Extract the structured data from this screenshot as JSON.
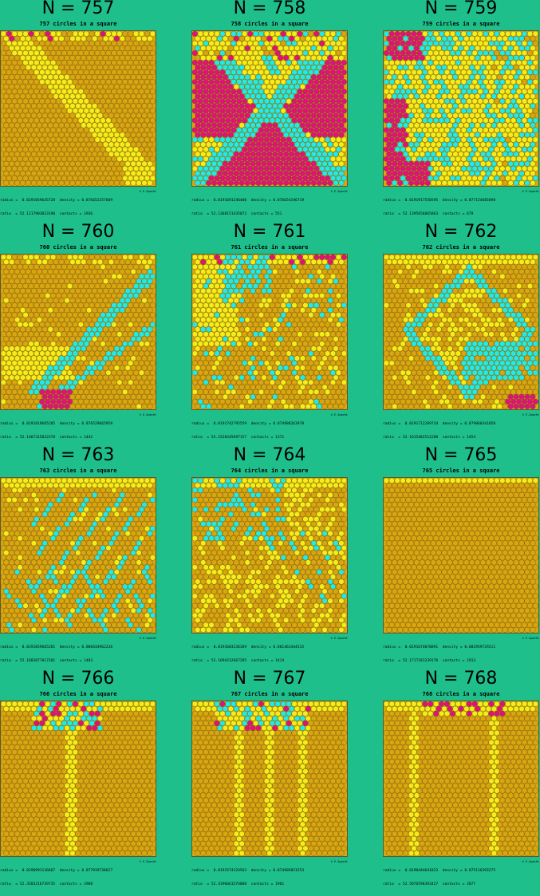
{
  "colors": {
    "background": "#1fbf8c",
    "orange": "#d9a510",
    "yellow": "#f5ec1a",
    "cyan": "#22eae6",
    "magenta": "#e0127a"
  },
  "panels": [
    {
      "title": "N = 757",
      "subtitle": "757 circles in a square",
      "radius": "radius =  0.0191059645728",
      "density": "density = 0.876652257609",
      "ratio": "ratio  = 52.1217903823190",
      "contacts": "contacts = 1936",
      "credit": "© E.Specht",
      "pattern": "diagonal"
    },
    {
      "title": "N = 758",
      "subtitle": "758 circles in a square",
      "radius": "radius =  0.0191691246400",
      "density": "density = 0.876654196719",
      "ratio": "ratio  = 52.1368151435072",
      "contacts": "contacts = 551",
      "credit": "© E.Specht",
      "pattern": "x-magenta"
    },
    {
      "title": "N = 759",
      "subtitle": "759 circles in a square",
      "radius": "radius =  0.0191917550595",
      "density": "density = 0.877154685698",
      "ratio": "ratio  = 52.1395656865863",
      "contacts": "contacts = 679",
      "credit": "© E.Specht",
      "pattern": "mixed-magenta"
    },
    {
      "title": "N = 760",
      "subtitle": "760 circles in a square",
      "radius": "radius =  0.0191819665285",
      "density": "density = 0.876529665958",
      "ratio": "ratio  = 52.1467315022378",
      "contacts": "contacts = 1442",
      "credit": "© E.Specht",
      "pattern": "chevron"
    },
    {
      "title": "N = 761",
      "subtitle": "761 circles in a square",
      "radius": "radius =  0.0191742795559",
      "density": "density = 0.874988263978",
      "ratio": "ratio  = 52.1528245697157",
      "contacts": "contacts = 1371",
      "credit": "© E.Specht",
      "pattern": "scatter-top"
    },
    {
      "title": "N = 762",
      "subtitle": "762 circles in a square",
      "radius": "radius =  0.0191712289734",
      "density": "density = 0.879860341058",
      "ratio": "ratio  = 52.1615482512288",
      "contacts": "contacts = 1454",
      "credit": "© E.Specht",
      "pattern": "diamond"
    },
    {
      "title": "N = 763",
      "subtitle": "763 circles in a square",
      "radius": "radius =  0.0191059665281",
      "density": "density = 0.880434962236",
      "ratio": "ratio  = 52.1682077017201",
      "contacts": "contacts = 1483",
      "credit": "© E.Specht",
      "pattern": "stripes"
    },
    {
      "title": "N = 764",
      "subtitle": "764 circles in a square",
      "radius": "radius =  0.0191683236369",
      "density": "density = 0.881461444315",
      "ratio": "ratio  = 52.1694212667285",
      "contacts": "contacts = 1414",
      "credit": "© E.Specht",
      "pattern": "sparse-stripes"
    },
    {
      "title": "N = 765",
      "subtitle": "765 circles in a square",
      "radius": "radius =  0.0191674070891",
      "density": "density = 0.882959729211",
      "ratio": "ratio  = 52.1717281239170",
      "contacts": "contacts = 1913",
      "credit": "© E.Specht",
      "pattern": "full"
    },
    {
      "title": "N = 766",
      "subtitle": "766 circles in a square",
      "radius": "radius =  0.0190991136667",
      "density": "density = 0.877919738627",
      "ratio": "ratio  = 52.3583216739735",
      "contacts": "contacts = 1988",
      "credit": "© E.Specht",
      "pattern": "top-stripe1"
    },
    {
      "title": "N = 767",
      "subtitle": "767 circles in a square",
      "radius": "radius =  0.0191574124563",
      "density": "density = 0.874905821553",
      "ratio": "ratio  = 52.4196661574888",
      "contacts": "contacts = 1901",
      "credit": "© E.Specht",
      "pattern": "top-stripes"
    },
    {
      "title": "N = 768",
      "subtitle": "768 circles in a square",
      "radius": "radius =  0.0190444641823",
      "density": "density = 0.875116393275",
      "ratio": "ratio  = 52.5076596393427",
      "contacts": "contacts = 2077",
      "credit": "© E.Specht",
      "pattern": "top-two"
    }
  ]
}
